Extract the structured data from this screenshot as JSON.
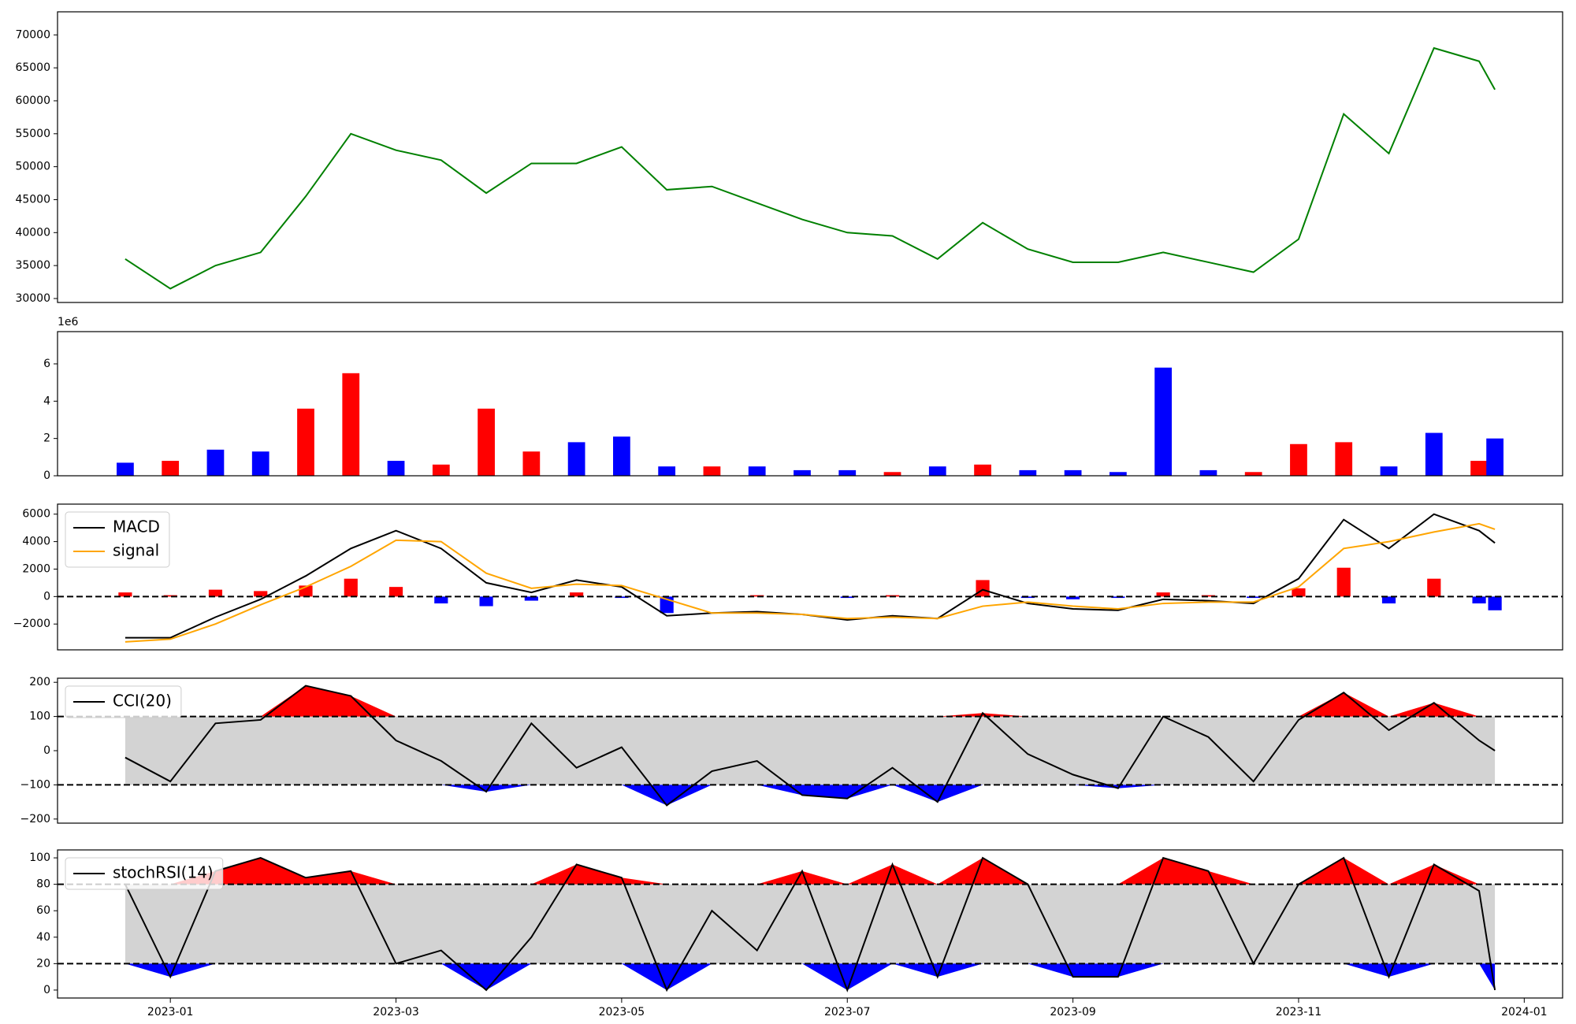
{
  "chart_data": [
    {
      "type": "line",
      "x": [
        0.6,
        1.0,
        1.4,
        1.8,
        2.2,
        2.6,
        3.0,
        3.4,
        3.8,
        4.2,
        4.6,
        5.0,
        5.4,
        5.8,
        6.2,
        6.6,
        7.0,
        7.4,
        7.8,
        8.2,
        8.6,
        9.0,
        9.4,
        9.8,
        10.2,
        10.6,
        11.0,
        11.4,
        11.8,
        12.2,
        12.6,
        12.74
      ],
      "xlim": [
        0,
        13.34
      ],
      "ylim": [
        29400,
        73500
      ],
      "yticks": [
        30000,
        35000,
        40000,
        45000,
        50000,
        55000,
        60000,
        65000,
        70000
      ],
      "series": [
        {
          "color": "#008000",
          "values": [
            36000,
            31500,
            35000,
            37000,
            45500,
            55000,
            52500,
            51000,
            46000,
            50500,
            50500,
            53000,
            46500,
            47000,
            44500,
            42000,
            40000,
            39500,
            36000,
            41500,
            37500,
            35500,
            35500,
            37000,
            35500,
            34000,
            39000,
            58000,
            52000,
            68000,
            66000,
            61700
          ]
        }
      ]
    },
    {
      "type": "bar",
      "x": [
        0.6,
        1.0,
        1.4,
        1.8,
        2.2,
        2.6,
        3.0,
        3.4,
        3.8,
        4.2,
        4.6,
        5.0,
        5.4,
        5.8,
        6.2,
        6.6,
        7.0,
        7.4,
        7.8,
        8.2,
        8.6,
        9.0,
        9.4,
        9.8,
        10.2,
        10.6,
        11.0,
        11.4,
        11.8,
        12.2,
        12.6,
        12.74
      ],
      "xlim": [
        0,
        13.34
      ],
      "ylim": [
        0,
        7730000
      ],
      "yticks": [
        0,
        {
          "value": 2000000,
          "label": "2"
        },
        {
          "value": 4000000,
          "label": "4"
        },
        {
          "value": 6000000,
          "label": "6"
        }
      ],
      "y_offset_label": "1e6",
      "values": [
        700000,
        800000,
        1400000,
        1300000,
        3600000,
        5500000,
        800000,
        600000,
        3600000,
        1300000,
        1800000,
        2100000,
        500000,
        500000,
        500000,
        300000,
        300000,
        200000,
        500000,
        600000,
        300000,
        300000,
        200000,
        5800000,
        300000,
        200000,
        1700000,
        1800000,
        500000,
        2300000,
        800000,
        2000000
      ],
      "colors": [
        "#0000ff",
        "#ff0000",
        "#0000ff",
        "#0000ff",
        "#ff0000",
        "#ff0000",
        "#0000ff",
        "#ff0000",
        "#ff0000",
        "#ff0000",
        "#0000ff",
        "#0000ff",
        "#0000ff",
        "#ff0000",
        "#0000ff",
        "#0000ff",
        "#0000ff",
        "#ff0000",
        "#0000ff",
        "#ff0000",
        "#0000ff",
        "#0000ff",
        "#0000ff",
        "#0000ff",
        "#0000ff",
        "#ff0000",
        "#ff0000",
        "#ff0000",
        "#0000ff",
        "#0000ff",
        "#ff0000",
        "#0000ff"
      ]
    },
    {
      "type": "line",
      "x": [
        0.6,
        1.0,
        1.4,
        1.8,
        2.2,
        2.6,
        3.0,
        3.4,
        3.8,
        4.2,
        4.6,
        5.0,
        5.4,
        5.8,
        6.2,
        6.6,
        7.0,
        7.4,
        7.8,
        8.2,
        8.6,
        9.0,
        9.4,
        9.8,
        10.2,
        10.6,
        11.0,
        11.4,
        11.8,
        12.2,
        12.6,
        12.74
      ],
      "xlim": [
        0,
        13.34
      ],
      "ylim": [
        -3880,
        6730
      ],
      "yticks": [
        {
          "value": -2000,
          "label": "−2000"
        },
        0,
        2000,
        4000,
        6000
      ],
      "legend": "upper left",
      "hlines": [
        0
      ],
      "histogram": {
        "up_color": "#ff0000",
        "down_color": "#0000ff",
        "values": [
          300,
          100,
          500,
          400,
          800,
          1300,
          700,
          -500,
          -700,
          -300,
          300,
          -100,
          -1200,
          0,
          100,
          0,
          -100,
          100,
          0,
          1200,
          -100,
          -200,
          -100,
          300,
          100,
          -100,
          600,
          2100,
          -500,
          1300,
          -500,
          -1000
        ]
      },
      "series": [
        {
          "name": "MACD",
          "color": "#000000",
          "values": [
            -3000,
            -3000,
            -1500,
            -200,
            1500,
            3500,
            4800,
            3500,
            1000,
            300,
            1200,
            700,
            -1400,
            -1200,
            -1100,
            -1300,
            -1700,
            -1400,
            -1600,
            500,
            -500,
            -900,
            -1000,
            -200,
            -300,
            -500,
            1300,
            5600,
            3500,
            6000,
            4800,
            3900
          ]
        },
        {
          "name": "signal",
          "color": "#ffa500",
          "values": [
            -3300,
            -3100,
            -2000,
            -600,
            700,
            2200,
            4100,
            4000,
            1700,
            600,
            900,
            800,
            -200,
            -1200,
            -1200,
            -1300,
            -1600,
            -1500,
            -1600,
            -700,
            -400,
            -700,
            -900,
            -500,
            -400,
            -400,
            700,
            3500,
            4000,
            4700,
            5300,
            4900
          ]
        }
      ]
    },
    {
      "type": "line",
      "x": [
        0.6,
        1.0,
        1.4,
        1.8,
        2.2,
        2.6,
        3.0,
        3.4,
        3.8,
        4.2,
        4.6,
        5.0,
        5.4,
        5.8,
        6.2,
        6.6,
        7.0,
        7.4,
        7.8,
        8.2,
        8.6,
        9.0,
        9.4,
        9.8,
        10.2,
        10.6,
        11.0,
        11.4,
        11.8,
        12.2,
        12.6,
        12.74
      ],
      "xlim": [
        0,
        13.34
      ],
      "ylim": [
        -212,
        212
      ],
      "yticks": [
        {
          "value": -200,
          "label": "−200"
        },
        {
          "value": -100,
          "label": "−100"
        },
        0,
        100,
        200
      ],
      "legend": "upper left",
      "hlines": [
        100,
        -100
      ],
      "band": [
        -100,
        100
      ],
      "band_color": "#d3d3d3",
      "above_color": "#ff0000",
      "below_color": "#0000ff",
      "series": [
        {
          "name": "CCI(20)",
          "color": "#000000",
          "values": [
            -20,
            -90,
            80,
            90,
            190,
            160,
            30,
            -30,
            -120,
            80,
            -50,
            10,
            -160,
            -60,
            -30,
            -130,
            -140,
            -50,
            -150,
            110,
            -10,
            -70,
            -110,
            100,
            40,
            -90,
            90,
            170,
            60,
            140,
            30,
            0
          ]
        }
      ]
    },
    {
      "type": "line",
      "x": [
        0.6,
        1.0,
        1.4,
        1.8,
        2.2,
        2.6,
        3.0,
        3.4,
        3.8,
        4.2,
        4.6,
        5.0,
        5.4,
        5.8,
        6.2,
        6.6,
        7.0,
        7.4,
        7.8,
        8.2,
        8.6,
        9.0,
        9.4,
        9.8,
        10.2,
        10.6,
        11.0,
        11.4,
        11.8,
        12.2,
        12.6,
        12.74
      ],
      "xlim": [
        0,
        13.34
      ],
      "ylim": [
        -6,
        106
      ],
      "yticks": [
        0,
        20,
        40,
        60,
        80,
        100
      ],
      "xticks": [
        {
          "value": 1,
          "label": "2023-01"
        },
        {
          "value": 3,
          "label": "2023-03"
        },
        {
          "value": 5,
          "label": "2023-05"
        },
        {
          "value": 7,
          "label": "2023-07"
        },
        {
          "value": 9,
          "label": "2023-09"
        },
        {
          "value": 11,
          "label": "2023-11"
        },
        {
          "value": 13,
          "label": "2024-01"
        }
      ],
      "legend": "upper left",
      "hlines": [
        80,
        20
      ],
      "band": [
        20,
        80
      ],
      "band_color": "#d3d3d3",
      "above_color": "#ff0000",
      "below_color": "#0000ff",
      "series": [
        {
          "name": "stochRSI(14)",
          "color": "#000000",
          "values": [
            80,
            10,
            90,
            100,
            85,
            90,
            20,
            30,
            0,
            40,
            95,
            85,
            0,
            60,
            30,
            90,
            0,
            95,
            10,
            100,
            80,
            10,
            10,
            100,
            90,
            20,
            80,
            100,
            10,
            95,
            75,
            0
          ]
        }
      ]
    }
  ]
}
